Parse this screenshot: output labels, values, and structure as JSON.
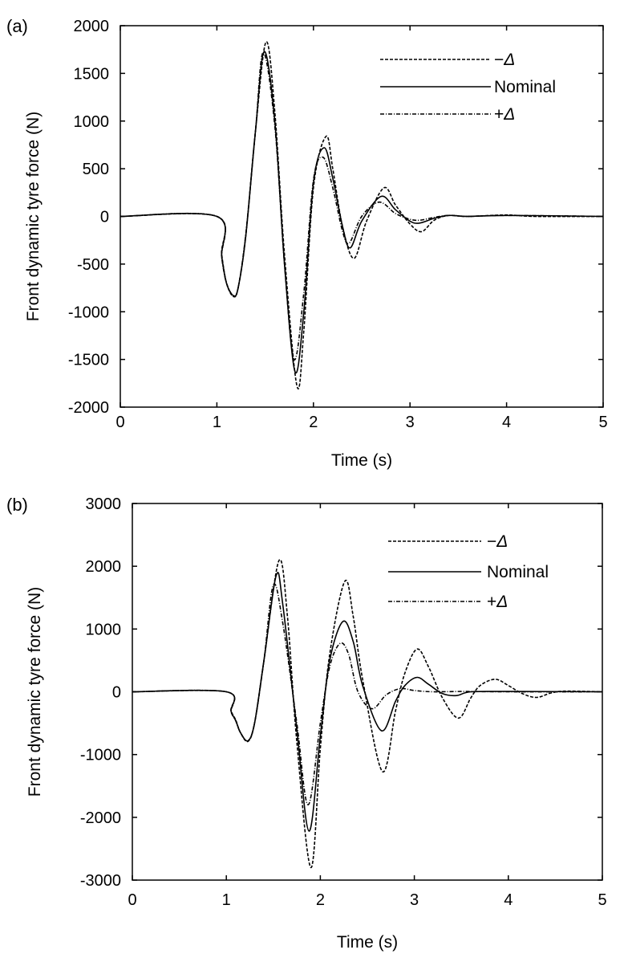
{
  "chart_data": [
    {
      "type": "line",
      "panel_label": "(a)",
      "title": "",
      "xlabel": "Time (s)",
      "ylabel": "Front dynamic tyre force (N)",
      "xlim": [
        0,
        5
      ],
      "ylim": [
        -2000,
        2000
      ],
      "xticks": [
        0,
        1,
        2,
        3,
        4,
        5
      ],
      "xtick_labels": [
        "0",
        "1",
        "2",
        "3",
        "4",
        "5"
      ],
      "yticks": [
        -2000,
        -1500,
        -1000,
        -500,
        0,
        500,
        1000,
        1500,
        2000
      ],
      "ytick_labels": [
        "-2000",
        "-1500",
        "-1000",
        "-500",
        "0",
        "500",
        "1000",
        "1500",
        "2000"
      ],
      "grid": false,
      "legend_position": "top-right",
      "series": [
        {
          "name": "−Δ",
          "style": "dashed",
          "points": [
            [
              0,
              0
            ],
            [
              1.0,
              0
            ],
            [
              1.05,
              -400
            ],
            [
              1.1,
              -700
            ],
            [
              1.17,
              -840
            ],
            [
              1.22,
              -750
            ],
            [
              1.3,
              -200
            ],
            [
              1.4,
              900
            ],
            [
              1.51,
              1830
            ],
            [
              1.6,
              1100
            ],
            [
              1.7,
              -400
            ],
            [
              1.83,
              -1780
            ],
            [
              1.9,
              -1200
            ],
            [
              2.0,
              300
            ],
            [
              2.13,
              840
            ],
            [
              2.2,
              500
            ],
            [
              2.3,
              -100
            ],
            [
              2.42,
              -440
            ],
            [
              2.55,
              -50
            ],
            [
              2.73,
              300
            ],
            [
              2.85,
              120
            ],
            [
              3.0,
              -80
            ],
            [
              3.12,
              -160
            ],
            [
              3.25,
              -40
            ],
            [
              3.4,
              10
            ],
            [
              3.6,
              0
            ],
            [
              4.0,
              15
            ],
            [
              4.3,
              0
            ],
            [
              5.0,
              0
            ]
          ]
        },
        {
          "name": "Nominal",
          "style": "solid",
          "points": [
            [
              0,
              0
            ],
            [
              1.0,
              0
            ],
            [
              1.05,
              -420
            ],
            [
              1.1,
              -700
            ],
            [
              1.17,
              -830
            ],
            [
              1.22,
              -750
            ],
            [
              1.3,
              -200
            ],
            [
              1.4,
              900
            ],
            [
              1.49,
              1730
            ],
            [
              1.6,
              1000
            ],
            [
              1.7,
              -500
            ],
            [
              1.81,
              -1630
            ],
            [
              1.9,
              -1000
            ],
            [
              2.0,
              350
            ],
            [
              2.11,
              720
            ],
            [
              2.2,
              400
            ],
            [
              2.3,
              -100
            ],
            [
              2.38,
              -330
            ],
            [
              2.5,
              -50
            ],
            [
              2.7,
              210
            ],
            [
              2.85,
              70
            ],
            [
              3.0,
              -50
            ],
            [
              3.1,
              -70
            ],
            [
              3.25,
              -20
            ],
            [
              3.4,
              10
            ],
            [
              3.6,
              0
            ],
            [
              4.0,
              10
            ],
            [
              5.0,
              0
            ]
          ]
        },
        {
          "name": "+Δ",
          "style": "dashdot",
          "points": [
            [
              0,
              0
            ],
            [
              1.0,
              0
            ],
            [
              1.05,
              -430
            ],
            [
              1.1,
              -700
            ],
            [
              1.17,
              -830
            ],
            [
              1.22,
              -750
            ],
            [
              1.3,
              -180
            ],
            [
              1.4,
              900
            ],
            [
              1.48,
              1720
            ],
            [
              1.6,
              950
            ],
            [
              1.7,
              -500
            ],
            [
              1.8,
              -1500
            ],
            [
              1.9,
              -800
            ],
            [
              2.0,
              380
            ],
            [
              2.1,
              620
            ],
            [
              2.2,
              300
            ],
            [
              2.3,
              -150
            ],
            [
              2.37,
              -280
            ],
            [
              2.5,
              0
            ],
            [
              2.68,
              150
            ],
            [
              2.85,
              30
            ],
            [
              3.0,
              -30
            ],
            [
              3.1,
              -40
            ],
            [
              3.25,
              -10
            ],
            [
              3.4,
              10
            ],
            [
              3.6,
              0
            ],
            [
              4.0,
              10
            ],
            [
              5.0,
              0
            ]
          ]
        }
      ]
    },
    {
      "type": "line",
      "panel_label": "(b)",
      "title": "",
      "xlabel": "Time (s)",
      "ylabel": "Front dynamic tyre force (N)",
      "xlim": [
        0,
        5
      ],
      "ylim": [
        -3000,
        3000
      ],
      "xticks": [
        0,
        1,
        2,
        3,
        4,
        5
      ],
      "xtick_labels": [
        "0",
        "1",
        "2",
        "3",
        "4",
        "5"
      ],
      "yticks": [
        -3000,
        -2000,
        -1000,
        0,
        1000,
        2000,
        3000
      ],
      "ytick_labels": [
        "-3000",
        "-2000",
        "-1000",
        "0",
        "1000",
        "2000",
        "3000"
      ],
      "grid": false,
      "legend_position": "top-right",
      "series": [
        {
          "name": "−Δ",
          "style": "dashed",
          "points": [
            [
              0,
              0
            ],
            [
              1.0,
              0
            ],
            [
              1.05,
              -300
            ],
            [
              1.1,
              -450
            ],
            [
              1.15,
              -650
            ],
            [
              1.23,
              -790
            ],
            [
              1.3,
              -500
            ],
            [
              1.4,
              500
            ],
            [
              1.56,
              2090
            ],
            [
              1.65,
              1200
            ],
            [
              1.75,
              -800
            ],
            [
              1.9,
              -2800
            ],
            [
              2.0,
              -900
            ],
            [
              2.1,
              600
            ],
            [
              2.26,
              1760
            ],
            [
              2.35,
              1200
            ],
            [
              2.45,
              200
            ],
            [
              2.66,
              -1270
            ],
            [
              2.8,
              -300
            ],
            [
              2.9,
              300
            ],
            [
              3.03,
              680
            ],
            [
              3.15,
              400
            ],
            [
              3.3,
              -100
            ],
            [
              3.47,
              -420
            ],
            [
              3.6,
              -100
            ],
            [
              3.7,
              100
            ],
            [
              3.86,
              200
            ],
            [
              4.0,
              100
            ],
            [
              4.15,
              -30
            ],
            [
              4.3,
              -90
            ],
            [
              4.45,
              -20
            ],
            [
              4.6,
              10
            ],
            [
              5.0,
              0
            ]
          ]
        },
        {
          "name": "Nominal",
          "style": "solid",
          "points": [
            [
              0,
              0
            ],
            [
              1.0,
              0
            ],
            [
              1.05,
              -310
            ],
            [
              1.1,
              -460
            ],
            [
              1.15,
              -650
            ],
            [
              1.23,
              -780
            ],
            [
              1.3,
              -500
            ],
            [
              1.4,
              500
            ],
            [
              1.53,
              1850
            ],
            [
              1.6,
              1400
            ],
            [
              1.75,
              -600
            ],
            [
              1.88,
              -2220
            ],
            [
              2.0,
              -700
            ],
            [
              2.1,
              500
            ],
            [
              2.24,
              1120
            ],
            [
              2.35,
              800
            ],
            [
              2.45,
              100
            ],
            [
              2.65,
              -620
            ],
            [
              2.8,
              -150
            ],
            [
              2.9,
              100
            ],
            [
              3.03,
              230
            ],
            [
              3.15,
              120
            ],
            [
              3.3,
              -30
            ],
            [
              3.45,
              -60
            ],
            [
              3.6,
              0
            ],
            [
              4.0,
              5
            ],
            [
              5.0,
              0
            ]
          ]
        },
        {
          "name": "+Δ",
          "style": "dashdot",
          "points": [
            [
              0,
              0
            ],
            [
              1.0,
              0
            ],
            [
              1.05,
              -320
            ],
            [
              1.1,
              -460
            ],
            [
              1.15,
              -650
            ],
            [
              1.23,
              -780
            ],
            [
              1.3,
              -500
            ],
            [
              1.4,
              500
            ],
            [
              1.5,
              1700
            ],
            [
              1.6,
              1100
            ],
            [
              1.75,
              -500
            ],
            [
              1.87,
              -1800
            ],
            [
              2.0,
              -500
            ],
            [
              2.1,
              400
            ],
            [
              2.21,
              770
            ],
            [
              2.3,
              600
            ],
            [
              2.4,
              0
            ],
            [
              2.55,
              -270
            ],
            [
              2.7,
              -50
            ],
            [
              2.85,
              50
            ],
            [
              3.0,
              20
            ],
            [
              3.2,
              0
            ],
            [
              3.5,
              5
            ],
            [
              4.0,
              0
            ],
            [
              5.0,
              0
            ]
          ]
        }
      ]
    }
  ]
}
